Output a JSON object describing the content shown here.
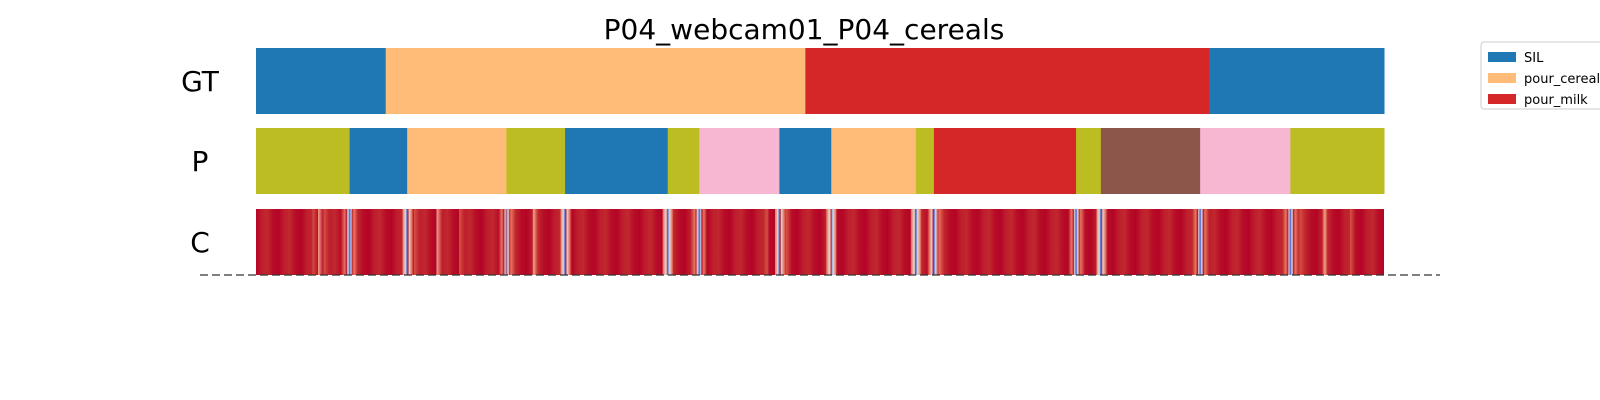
{
  "chart_data": {
    "type": "segmentation_timeline",
    "title": "P04_webcam01_P04_cereals",
    "rows": [
      {
        "label": "GT",
        "segments": [
          {
            "start": 0.0,
            "end": 0.115,
            "class": "SIL"
          },
          {
            "start": 0.115,
            "end": 0.487,
            "class": "pour_cereals"
          },
          {
            "start": 0.487,
            "end": 0.845,
            "class": "pour_milk"
          },
          {
            "start": 0.845,
            "end": 1.0,
            "class": "SIL"
          }
        ]
      },
      {
        "label": "P",
        "segments": [
          {
            "start": 0.0,
            "end": 0.083,
            "color": "#bcbd22"
          },
          {
            "start": 0.083,
            "end": 0.134,
            "color": "#1f77b4"
          },
          {
            "start": 0.134,
            "end": 0.222,
            "color": "#ffbb78"
          },
          {
            "start": 0.222,
            "end": 0.274,
            "color": "#bcbd22"
          },
          {
            "start": 0.274,
            "end": 0.365,
            "color": "#1f77b4"
          },
          {
            "start": 0.365,
            "end": 0.393,
            "color": "#bcbd22"
          },
          {
            "start": 0.393,
            "end": 0.464,
            "color": "#f7b6d2"
          },
          {
            "start": 0.464,
            "end": 0.51,
            "color": "#1f77b4"
          },
          {
            "start": 0.51,
            "end": 0.585,
            "color": "#ffbb78"
          },
          {
            "start": 0.585,
            "end": 0.601,
            "color": "#bcbd22"
          },
          {
            "start": 0.601,
            "end": 0.727,
            "color": "#d62728"
          },
          {
            "start": 0.727,
            "end": 0.749,
            "color": "#bcbd22"
          },
          {
            "start": 0.749,
            "end": 0.837,
            "color": "#8c564b"
          },
          {
            "start": 0.837,
            "end": 0.917,
            "color": "#f7b6d2"
          },
          {
            "start": 0.917,
            "end": 1.0,
            "color": "#bcbd22"
          }
        ]
      },
      {
        "label": "C",
        "type": "confidence",
        "low_confidence_at": [
          0.083,
          0.134,
          0.222,
          0.274,
          0.365,
          0.393,
          0.464,
          0.51,
          0.585,
          0.601,
          0.727,
          0.749,
          0.837,
          0.917
        ],
        "pale_regions": [
          [
            0.05,
            0.06
          ],
          [
            0.14,
            0.18
          ],
          [
            0.222,
            0.27
          ],
          [
            0.453,
            0.47
          ],
          [
            0.925,
            0.97
          ]
        ]
      }
    ],
    "legend": [
      {
        "label": "SIL",
        "color": "#1f77b4"
      },
      {
        "label": "pour_cereals",
        "color": "#ffbb78"
      },
      {
        "label": "pour_milk",
        "color": "#d62728"
      }
    ],
    "legend_position": "top-right"
  }
}
